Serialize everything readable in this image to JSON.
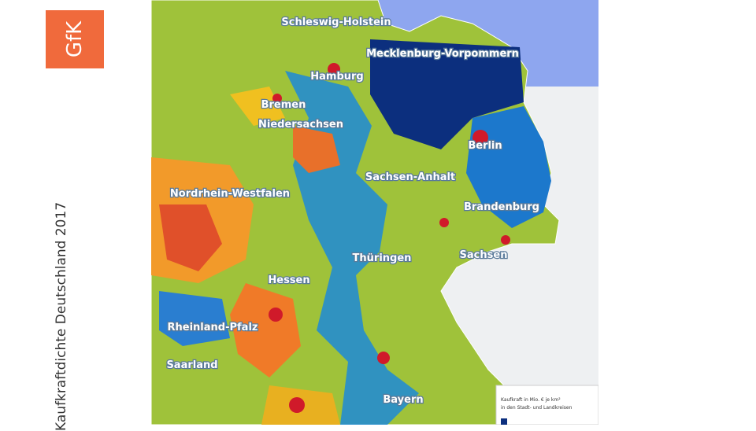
{
  "logo": "GfK",
  "title": "Kaufkraftdichte Deutschland 2017",
  "labels": [
    "Schleswig-Holstein",
    "Mecklenburg-Vorpommern",
    "Hamburg",
    "Bremen",
    "Niedersachsen",
    "Berlin",
    "Sachsen-Anhalt",
    "Brandenburg",
    "Nordrhein-Westfalen",
    "Thüringen",
    "Sachsen",
    "Hessen",
    "Rheinland-Pfalz",
    "Saarland",
    "Bayern"
  ],
  "legend": {
    "title": "Kaufkraft in Mio. € je km²",
    "subtitle": "in den Stadt- und Landkreisen"
  }
}
